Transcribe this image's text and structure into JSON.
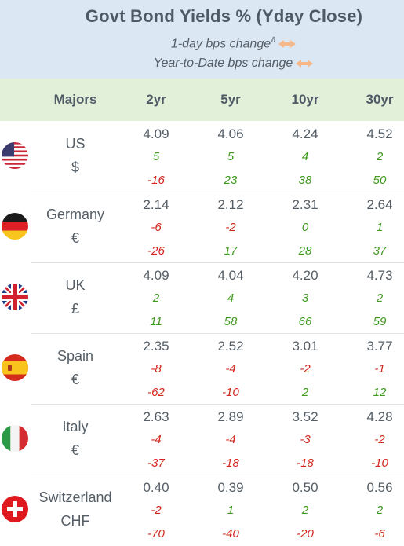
{
  "header": {
    "title": "Govt Bond Yields %  (Yday Close)",
    "legend_1day": "1-day bps change",
    "legend_1day_mark": "∂",
    "legend_ytd": "Year-to-Date bps change",
    "bg_color": "#dbe7f3",
    "arrow_color": "#f4b88a"
  },
  "columns": {
    "group": "Majors",
    "tenors": [
      "2yr",
      "5yr",
      "10yr",
      "30yr"
    ],
    "bg_color": "#e2efd9"
  },
  "colors": {
    "positive": "#3d9a1c",
    "negative": "#d2261c",
    "text": "#555e66"
  },
  "rows": [
    {
      "country": "US",
      "currency": "$",
      "flag_icon": "us-flag-icon",
      "yields": [
        "4.09",
        "4.06",
        "4.24",
        "4.52"
      ],
      "day_change": [
        "5",
        "5",
        "4",
        "2"
      ],
      "ytd_change": [
        "-16",
        "23",
        "38",
        "50"
      ]
    },
    {
      "country": "Germany",
      "currency": "€",
      "flag_icon": "germany-flag-icon",
      "yields": [
        "2.14",
        "2.12",
        "2.31",
        "2.64"
      ],
      "day_change": [
        "-6",
        "-2",
        "0",
        "1"
      ],
      "ytd_change": [
        "-26",
        "17",
        "28",
        "37"
      ]
    },
    {
      "country": "UK",
      "currency": "£",
      "flag_icon": "uk-flag-icon",
      "yields": [
        "4.09",
        "4.04",
        "4.20",
        "4.73"
      ],
      "day_change": [
        "2",
        "4",
        "3",
        "2"
      ],
      "ytd_change": [
        "11",
        "58",
        "66",
        "59"
      ]
    },
    {
      "country": "Spain",
      "currency": "€",
      "flag_icon": "spain-flag-icon",
      "yields": [
        "2.35",
        "2.52",
        "3.01",
        "3.77"
      ],
      "day_change": [
        "-8",
        "-4",
        "-2",
        "-1"
      ],
      "ytd_change": [
        "-62",
        "-10",
        "2",
        "12"
      ]
    },
    {
      "country": "Italy",
      "currency": "€",
      "flag_icon": "italy-flag-icon",
      "yields": [
        "2.63",
        "2.89",
        "3.52",
        "4.28"
      ],
      "day_change": [
        "-4",
        "-4",
        "-3",
        "-2"
      ],
      "ytd_change": [
        "-37",
        "-18",
        "-18",
        "-10"
      ]
    },
    {
      "country": "Switzerland",
      "currency": "CHF",
      "flag_icon": "switzerland-flag-icon",
      "yields": [
        "0.40",
        "0.39",
        "0.50",
        "0.56"
      ],
      "day_change": [
        "-2",
        "1",
        "2",
        "2"
      ],
      "ytd_change": [
        "-70",
        "-40",
        "-20",
        "-6"
      ]
    }
  ]
}
